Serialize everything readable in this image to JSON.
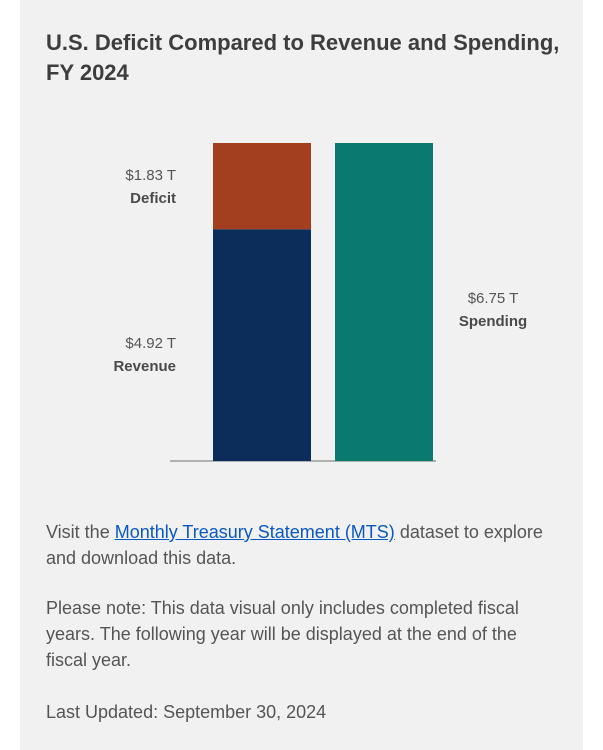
{
  "title": "U.S. Deficit Compared to Revenue and Spending, FY 2024",
  "visit": {
    "before": "Visit the ",
    "link": "Monthly Treasury Statement (MTS)",
    "after": " dataset to explore and download this data."
  },
  "note": "Please note: This data visual only includes completed fiscal years. The following year will be displayed at the end of the fiscal year.",
  "last_updated": "Last Updated: September 30, 2024",
  "colors": {
    "deficit": "#a33f1f",
    "revenue": "#0c2d5a",
    "spending": "#0b7a6e",
    "axis": "#9a9a9a"
  },
  "chart_data": {
    "type": "bar",
    "title": "U.S. Deficit Compared to Revenue and Spending, FY 2024",
    "unit": "T",
    "ylim": [
      0,
      6.75
    ],
    "grid": false,
    "bars": [
      {
        "stack": [
          {
            "name": "Revenue",
            "value": 4.92,
            "label": "$4.92 T"
          },
          {
            "name": "Deficit",
            "value": 1.83,
            "label": "$1.83 T"
          }
        ]
      },
      {
        "stack": [
          {
            "name": "Spending",
            "value": 6.75,
            "label": "$6.75 T"
          }
        ]
      }
    ]
  }
}
